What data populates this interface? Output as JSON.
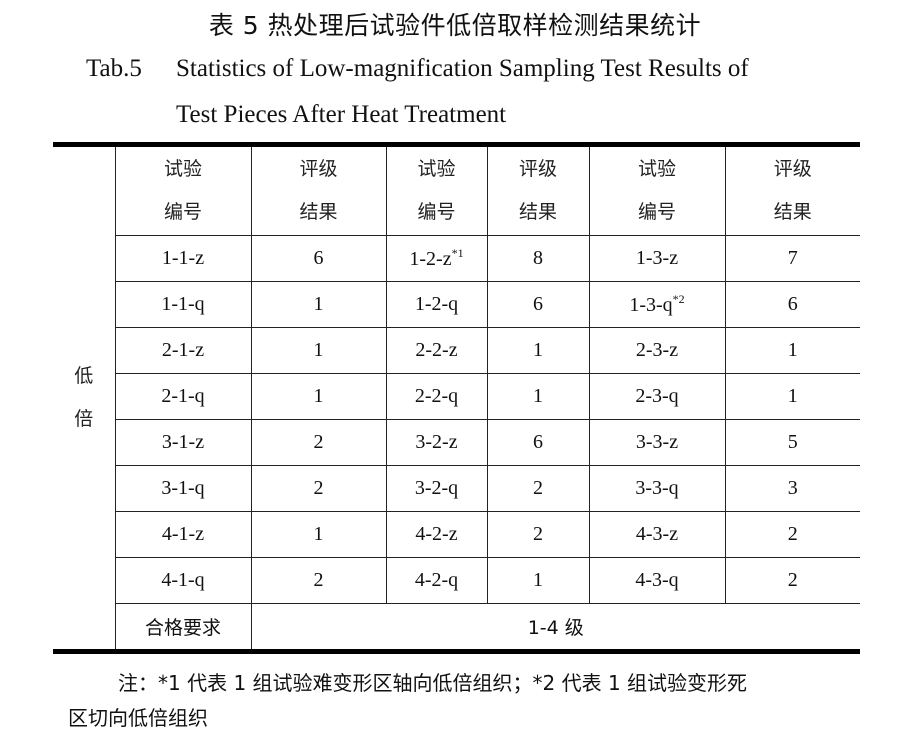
{
  "title_cn": "表 5  热处理后试验件低倍取样检测结果统计",
  "title_en": {
    "label": "Tab.5",
    "line1": "Statistics of Low-magnification Sampling Test Results of",
    "line2": "Test Pieces After Heat Treatment"
  },
  "table": {
    "side_label": [
      "低",
      "倍"
    ],
    "headers": [
      [
        "试验",
        "编号"
      ],
      [
        "评级",
        "结果"
      ],
      [
        "试验",
        "编号"
      ],
      [
        "评级",
        "结果"
      ],
      [
        "试验",
        "编号"
      ],
      [
        "评级",
        "结果"
      ]
    ],
    "rows": [
      {
        "id1": "1-1-z",
        "r1": "6",
        "id2": "1-2-z",
        "sup2": "*1",
        "r2": "8",
        "id3": "1-3-z",
        "sup3": "",
        "r3": "7"
      },
      {
        "id1": "1-1-q",
        "r1": "1",
        "id2": "1-2-q",
        "sup2": "",
        "r2": "6",
        "id3": "1-3-q",
        "sup3": "*2",
        "r3": "6"
      },
      {
        "id1": "2-1-z",
        "r1": "1",
        "id2": "2-2-z",
        "sup2": "",
        "r2": "1",
        "id3": "2-3-z",
        "sup3": "",
        "r3": "1"
      },
      {
        "id1": "2-1-q",
        "r1": "1",
        "id2": "2-2-q",
        "sup2": "",
        "r2": "1",
        "id3": "2-3-q",
        "sup3": "",
        "r3": "1"
      },
      {
        "id1": "3-1-z",
        "r1": "2",
        "id2": "3-2-z",
        "sup2": "",
        "r2": "6",
        "id3": "3-3-z",
        "sup3": "",
        "r3": "5"
      },
      {
        "id1": "3-1-q",
        "r1": "2",
        "id2": "3-2-q",
        "sup2": "",
        "r2": "2",
        "id3": "3-3-q",
        "sup3": "",
        "r3": "3"
      },
      {
        "id1": "4-1-z",
        "r1": "1",
        "id2": "4-2-z",
        "sup2": "",
        "r2": "2",
        "id3": "4-3-z",
        "sup3": "",
        "r3": "2"
      },
      {
        "id1": "4-1-q",
        "r1": "2",
        "id2": "4-2-q",
        "sup2": "",
        "r2": "1",
        "id3": "4-3-q",
        "sup3": "",
        "r3": "2"
      }
    ],
    "requirement_label": "合格要求",
    "requirement_value": "1-4 级"
  },
  "note_line1": "注：*1 代表 1 组试验难变形区轴向低倍组织；*2 代表 1 组试验变形死",
  "note_line2": "区切向低倍组织"
}
